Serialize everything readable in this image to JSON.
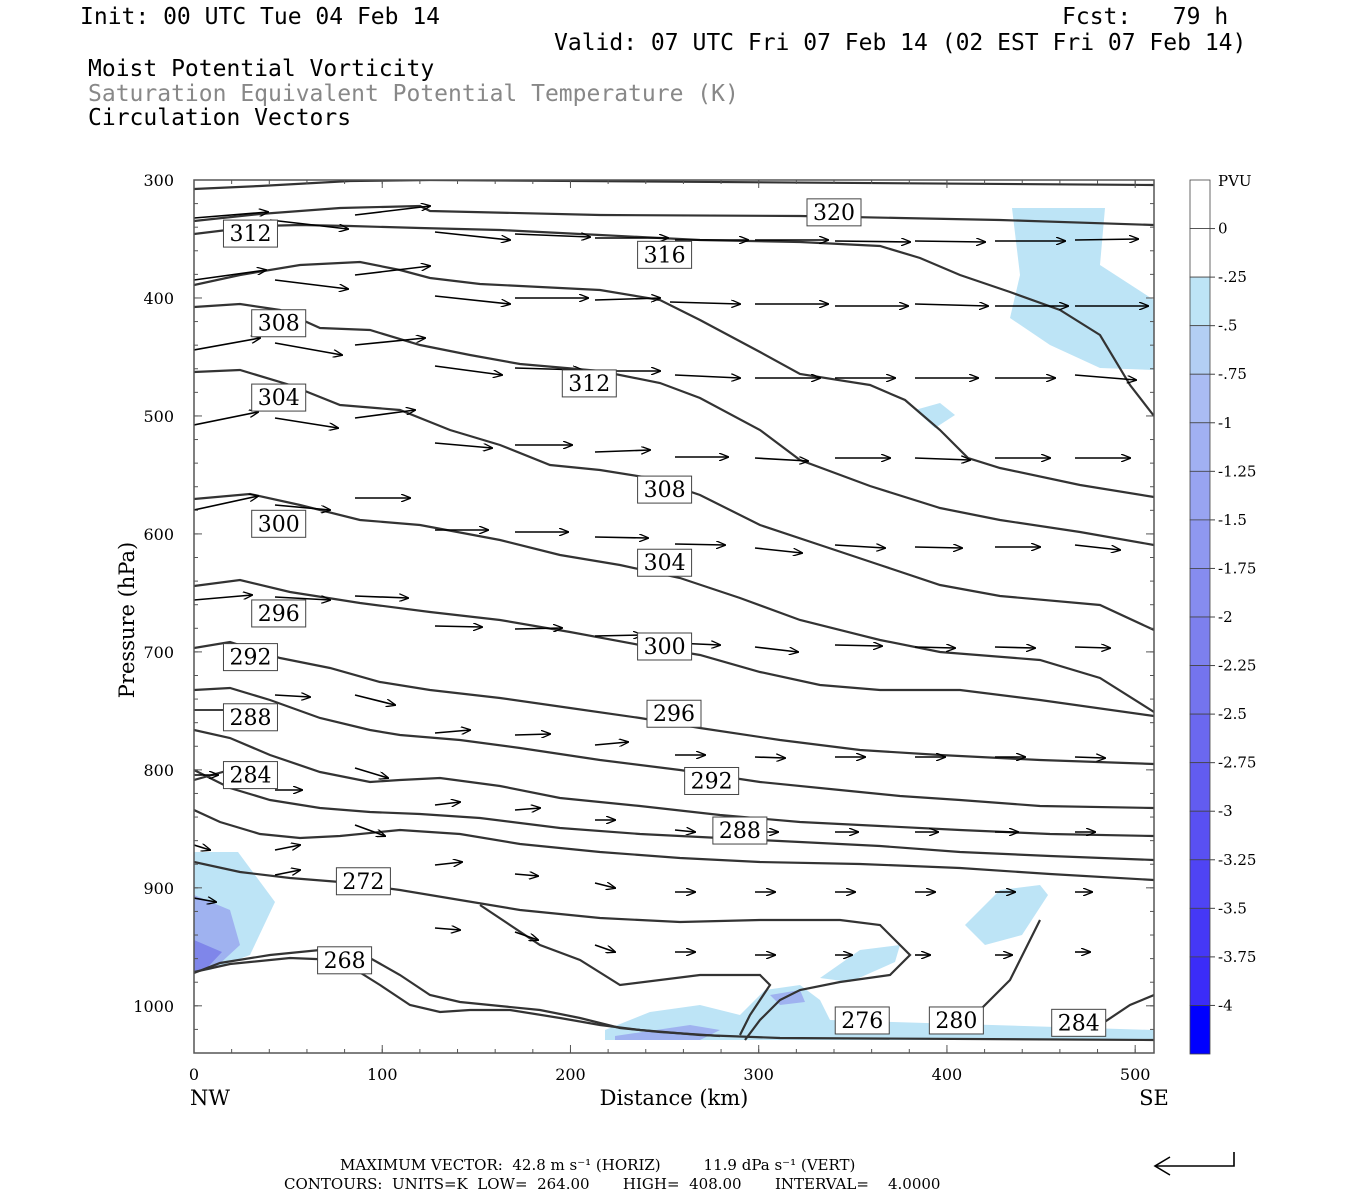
{
  "header": {
    "init": "Init: 00 UTC Tue 04 Feb 14",
    "fcst": "Fcst:   79 h",
    "valid": "Valid: 07 UTC Fri 07 Feb 14 (02 EST Fri 07 Feb 14)",
    "line1": "Moist Potential Vorticity",
    "line2": "Saturation Equivalent Potential Temperature (K)",
    "line3": "Circulation Vectors"
  },
  "footer": {
    "max_vector": "MAXIMUM VECTOR:  42.8 m s⁻¹ (HORIZ)         11.9 dPa s⁻¹ (VERT)",
    "contours": "CONTOURS:  UNITS=K  LOW=  264.00       HIGH=  408.00       INTERVAL=    4.0000"
  },
  "chart_data": {
    "type": "cross-section",
    "xlabel": "Distance (km)",
    "ylabel": "Pressure (hPa)",
    "x_end_left": "NW",
    "x_end_right": "SE",
    "xlim": [
      0,
      510
    ],
    "ylim": [
      1040,
      300
    ],
    "x_ticks": [
      0,
      100,
      200,
      300,
      400,
      500
    ],
    "y_ticks": [
      300,
      400,
      500,
      600,
      700,
      800,
      900,
      1000
    ],
    "colorbar": {
      "title": "PVU",
      "labels": [
        "0",
        "-.25",
        "-.5",
        "-.75",
        "-1",
        "-1.25",
        "-1.5",
        "-1.75",
        "-2",
        "-2.25",
        "-2.5",
        "-2.75",
        "-3",
        "-3.25",
        "-3.5",
        "-3.75",
        "-4"
      ],
      "top_color": "#ffffff",
      "bottom_color": "#0000ff"
    },
    "contour_units": "K",
    "contour_low": 264.0,
    "contour_high": 408.0,
    "contour_interval": 4.0,
    "contour_labels": [
      {
        "text": "320",
        "x": 340,
        "p": 327
      },
      {
        "text": "316",
        "x": 250,
        "p": 363
      },
      {
        "text": "312",
        "x": 30,
        "p": 345
      },
      {
        "text": "312",
        "x": 210,
        "p": 472
      },
      {
        "text": "308",
        "x": 45,
        "p": 421
      },
      {
        "text": "308",
        "x": 250,
        "p": 562
      },
      {
        "text": "304",
        "x": 45,
        "p": 484
      },
      {
        "text": "304",
        "x": 250,
        "p": 624
      },
      {
        "text": "300",
        "x": 45,
        "p": 591
      },
      {
        "text": "300",
        "x": 250,
        "p": 695
      },
      {
        "text": "296",
        "x": 45,
        "p": 667
      },
      {
        "text": "296",
        "x": 255,
        "p": 752
      },
      {
        "text": "292",
        "x": 30,
        "p": 704
      },
      {
        "text": "292",
        "x": 275,
        "p": 809
      },
      {
        "text": "288",
        "x": 30,
        "p": 755
      },
      {
        "text": "288",
        "x": 290,
        "p": 851
      },
      {
        "text": "284",
        "x": 30,
        "p": 804
      },
      {
        "text": "284",
        "x": 470,
        "p": 1014
      },
      {
        "text": "280",
        "x": 405,
        "p": 1012
      },
      {
        "text": "276",
        "x": 355,
        "p": 1012
      },
      {
        "text": "272",
        "x": 90,
        "p": 894
      },
      {
        "text": "268",
        "x": 80,
        "p": 961
      }
    ],
    "max_vector_horiz": "42.8 m s-1",
    "max_vector_vert": "11.9 dPa s-1"
  }
}
